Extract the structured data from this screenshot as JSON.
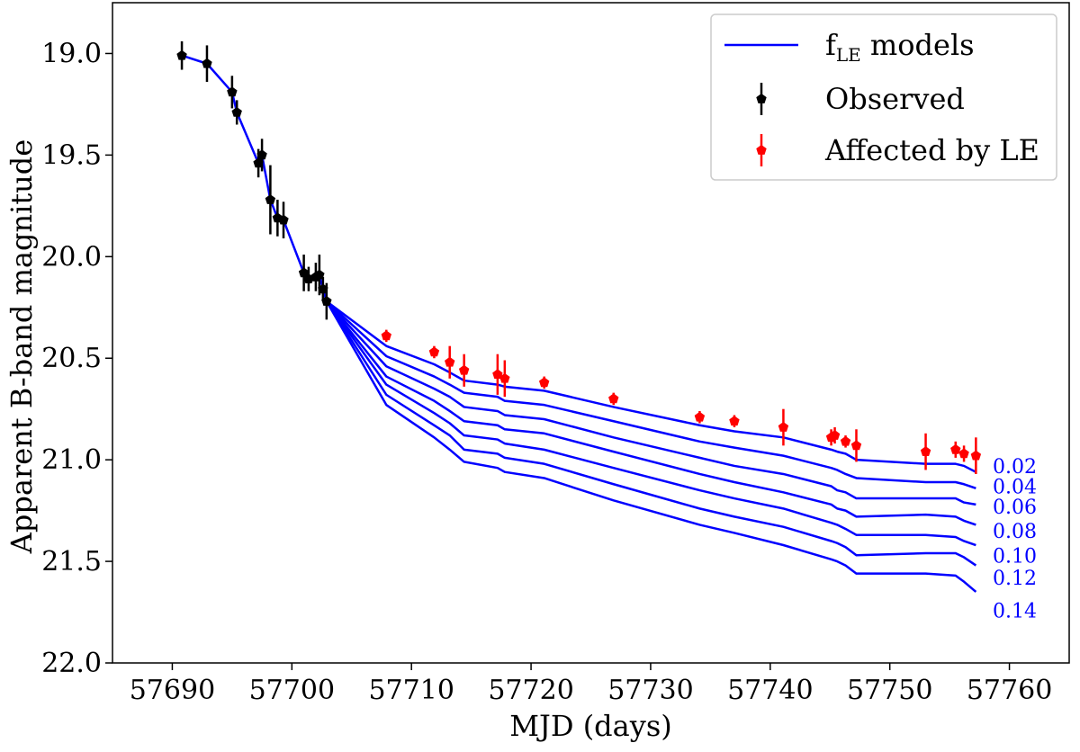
{
  "chart_data": {
    "type": "scatter",
    "xlabel": "MJD (days)",
    "ylabel": "Apparent B-band magnitude",
    "xlim": [
      57685,
      57765
    ],
    "ylim": [
      22.0,
      18.75
    ],
    "x_ticks": [
      57690,
      57700,
      57710,
      57720,
      57730,
      57740,
      57750,
      57760
    ],
    "y_ticks": [
      19.0,
      19.5,
      20.0,
      20.5,
      21.0,
      21.5,
      22.0
    ],
    "y_tick_labels": [
      "19.0",
      "19.5",
      "20.0",
      "20.5",
      "21.0",
      "21.5",
      "22.0"
    ],
    "colors": {
      "models": "#0000ff",
      "observed": "#000000",
      "affected": "#ff0000"
    },
    "legend": {
      "position": "top-right",
      "entries": [
        {
          "label_main": "f",
          "label_sub": "LE",
          "label_rest": " models",
          "kind": "line",
          "series": "models"
        },
        {
          "label": "Observed",
          "kind": "marker",
          "series": "observed"
        },
        {
          "label": "Affected by LE",
          "kind": "marker",
          "series": "affected"
        }
      ]
    },
    "observed": [
      {
        "x": 57690.8,
        "y": 19.01,
        "err": 0.07
      },
      {
        "x": 57692.9,
        "y": 19.05,
        "err": 0.09
      },
      {
        "x": 57695.0,
        "y": 19.19,
        "err": 0.08
      },
      {
        "x": 57695.4,
        "y": 19.29,
        "err": 0.06
      },
      {
        "x": 57697.2,
        "y": 19.54,
        "err": 0.07
      },
      {
        "x": 57697.5,
        "y": 19.5,
        "err": 0.08
      },
      {
        "x": 57698.2,
        "y": 19.72,
        "err": 0.17
      },
      {
        "x": 57698.8,
        "y": 19.81,
        "err": 0.09
      },
      {
        "x": 57699.3,
        "y": 19.82,
        "err": 0.09
      },
      {
        "x": 57701.0,
        "y": 20.08,
        "err": 0.09
      },
      {
        "x": 57701.4,
        "y": 20.11,
        "err": 0.06
      },
      {
        "x": 57702.0,
        "y": 20.1,
        "err": 0.07
      },
      {
        "x": 57702.3,
        "y": 20.09,
        "err": 0.1
      },
      {
        "x": 57702.6,
        "y": 20.16,
        "err": 0.06
      },
      {
        "x": 57702.9,
        "y": 20.22,
        "err": 0.09
      }
    ],
    "affected": [
      {
        "x": 57707.9,
        "y": 20.39,
        "err": 0.03
      },
      {
        "x": 57711.9,
        "y": 20.47,
        "err": 0.03
      },
      {
        "x": 57713.2,
        "y": 20.52,
        "err": 0.08
      },
      {
        "x": 57714.4,
        "y": 20.56,
        "err": 0.08
      },
      {
        "x": 57717.2,
        "y": 20.58,
        "err": 0.1
      },
      {
        "x": 57717.8,
        "y": 20.6,
        "err": 0.09
      },
      {
        "x": 57721.1,
        "y": 20.62,
        "err": 0.03
      },
      {
        "x": 57726.9,
        "y": 20.7,
        "err": 0.03
      },
      {
        "x": 57734.1,
        "y": 20.79,
        "err": 0.03
      },
      {
        "x": 57737.0,
        "y": 20.81,
        "err": 0.03
      },
      {
        "x": 57741.1,
        "y": 20.84,
        "err": 0.09
      },
      {
        "x": 57745.1,
        "y": 20.89,
        "err": 0.04
      },
      {
        "x": 57745.4,
        "y": 20.88,
        "err": 0.04
      },
      {
        "x": 57746.3,
        "y": 20.91,
        "err": 0.03
      },
      {
        "x": 57747.2,
        "y": 20.93,
        "err": 0.08
      },
      {
        "x": 57753.0,
        "y": 20.96,
        "err": 0.09
      },
      {
        "x": 57755.5,
        "y": 20.95,
        "err": 0.04
      },
      {
        "x": 57756.2,
        "y": 20.97,
        "err": 0.04
      },
      {
        "x": 57757.2,
        "y": 20.98,
        "err": 0.09
      }
    ],
    "model_base": {
      "x": [
        57690.8,
        57692.9,
        57695.0,
        57695.4,
        57697.2,
        57697.5,
        57698.2,
        57698.8,
        57699.3,
        57701.0,
        57701.4,
        57702.0,
        57702.3,
        57702.6,
        57702.9
      ],
      "y": [
        19.01,
        19.05,
        19.19,
        19.29,
        19.54,
        19.5,
        19.72,
        19.81,
        19.82,
        20.08,
        20.11,
        20.1,
        20.09,
        20.16,
        20.22
      ]
    },
    "model_x": [
      57702.9,
      57707.9,
      57711.9,
      57713.2,
      57714.4,
      57717.2,
      57717.8,
      57721.1,
      57726.9,
      57734.1,
      57737.0,
      57741.1,
      57745.1,
      57745.6,
      57746.3,
      57747.2,
      57753.0,
      57755.5,
      57756.2,
      57757.2
    ],
    "models": [
      {
        "name": "0.02",
        "y": [
          20.22,
          20.44,
          20.53,
          20.57,
          20.61,
          20.63,
          20.64,
          20.66,
          20.74,
          20.83,
          20.86,
          20.89,
          20.95,
          20.96,
          20.97,
          21.0,
          21.02,
          21.02,
          21.03,
          21.06
        ]
      },
      {
        "name": "0.04",
        "y": [
          20.22,
          20.49,
          20.59,
          20.63,
          20.67,
          20.69,
          20.71,
          20.73,
          20.81,
          20.91,
          20.94,
          20.98,
          21.04,
          21.05,
          21.07,
          21.09,
          21.11,
          21.11,
          21.12,
          21.14
        ]
      },
      {
        "name": "0.06",
        "y": [
          20.22,
          20.54,
          20.65,
          20.69,
          20.74,
          20.76,
          20.78,
          20.8,
          20.89,
          20.99,
          21.03,
          21.07,
          21.13,
          21.15,
          21.16,
          21.19,
          21.19,
          21.19,
          21.21,
          21.22
        ]
      },
      {
        "name": "0.08",
        "y": [
          20.22,
          20.59,
          20.71,
          20.76,
          20.81,
          20.83,
          20.85,
          20.87,
          20.96,
          21.07,
          21.11,
          21.16,
          21.22,
          21.24,
          21.25,
          21.28,
          21.27,
          21.28,
          21.3,
          21.32
        ]
      },
      {
        "name": "0.10",
        "y": [
          20.22,
          20.63,
          20.77,
          20.82,
          20.88,
          20.9,
          20.92,
          20.95,
          21.04,
          21.15,
          21.19,
          21.24,
          21.31,
          21.32,
          21.34,
          21.37,
          21.37,
          21.38,
          21.4,
          21.42
        ]
      },
      {
        "name": "0.12",
        "y": [
          20.22,
          20.68,
          20.83,
          20.88,
          20.95,
          20.97,
          20.99,
          21.02,
          21.12,
          21.24,
          21.28,
          21.33,
          21.4,
          21.41,
          21.43,
          21.47,
          21.46,
          21.46,
          21.48,
          21.52
        ]
      },
      {
        "name": "0.14",
        "y": [
          20.22,
          20.73,
          20.89,
          20.95,
          21.01,
          21.04,
          21.06,
          21.09,
          21.2,
          21.32,
          21.36,
          21.42,
          21.49,
          21.5,
          21.52,
          21.56,
          21.56,
          21.57,
          21.6,
          21.65
        ]
      }
    ],
    "model_label_y": [
      21.03,
      21.13,
      21.23,
      21.35,
      21.47,
      21.58,
      21.74
    ]
  }
}
